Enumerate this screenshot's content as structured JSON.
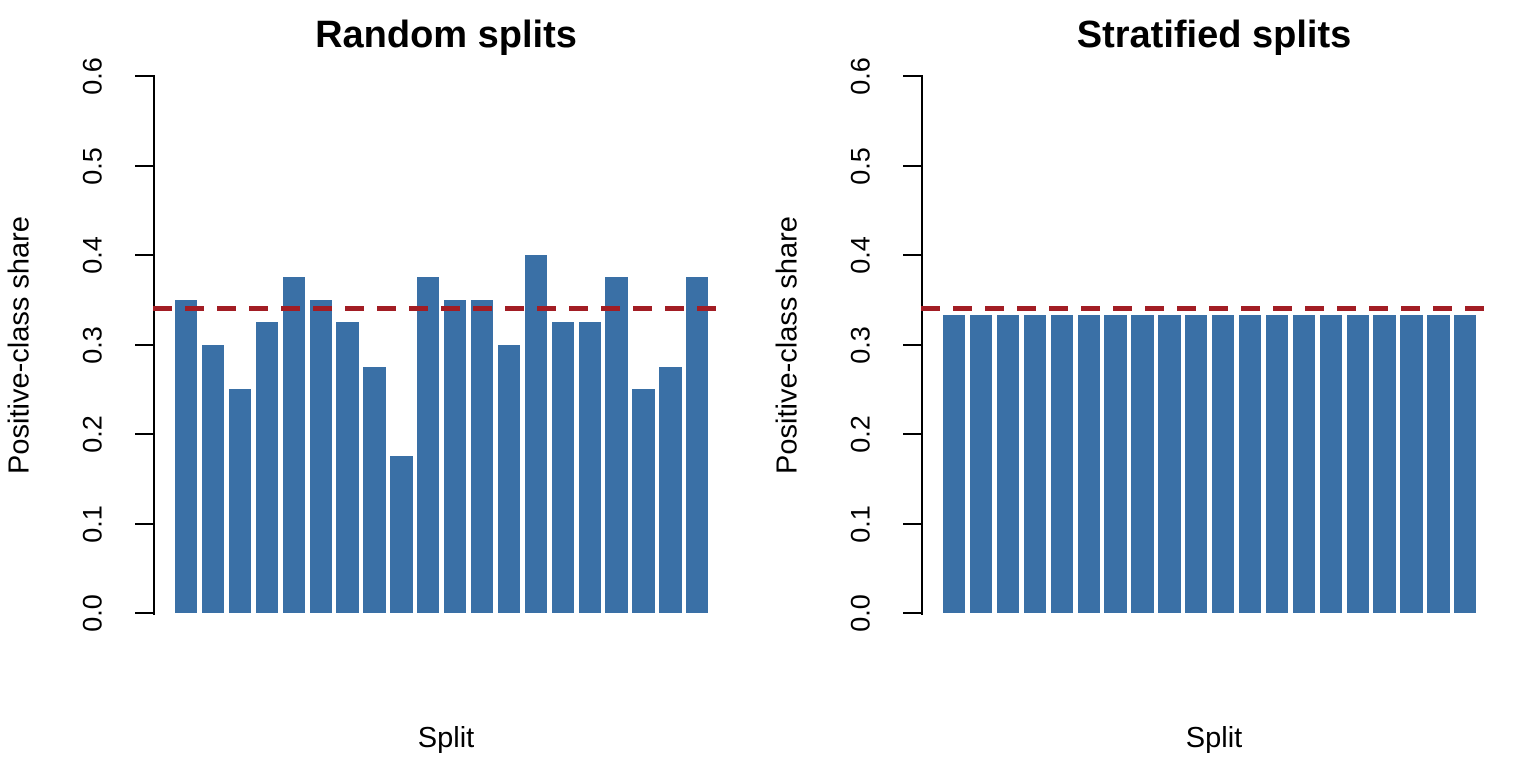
{
  "figure": {
    "background": "#FFFFFF",
    "bar_color": "#3A70A6",
    "reference_line_color": "#A21D24",
    "axis_color": "#000000",
    "text_color": "#000000"
  },
  "chart_data": [
    {
      "type": "bar",
      "title": "Random splits",
      "xlabel": "Split",
      "ylabel": "Positive-class share",
      "ylim": [
        0,
        0.6
      ],
      "yticks": [
        0,
        0.1,
        0.2,
        0.3,
        0.4,
        0.5,
        0.6
      ],
      "ytick_labels": [
        "0.0",
        "0.1",
        "0.2",
        "0.3",
        "0.4",
        "0.5",
        "0.6"
      ],
      "n_bars": 20,
      "values": [
        0.35,
        0.3,
        0.25,
        0.325,
        0.375,
        0.35,
        0.325,
        0.275,
        0.175,
        0.375,
        0.35,
        0.35,
        0.3,
        0.4,
        0.325,
        0.325,
        0.375,
        0.25,
        0.275,
        0.375
      ],
      "bar_color": "#3A70A6",
      "reference_line": {
        "y": 0.34,
        "style": "dashed",
        "color": "#A21D24"
      },
      "grid": false,
      "legend": null
    },
    {
      "type": "bar",
      "title": "Stratified splits",
      "xlabel": "Split",
      "ylabel": "Positive-class share",
      "ylim": [
        0,
        0.6
      ],
      "yticks": [
        0,
        0.1,
        0.2,
        0.3,
        0.4,
        0.5,
        0.6
      ],
      "ytick_labels": [
        "0.0",
        "0.1",
        "0.2",
        "0.3",
        "0.4",
        "0.5",
        "0.6"
      ],
      "n_bars": 20,
      "values": [
        0.333,
        0.333,
        0.333,
        0.333,
        0.333,
        0.333,
        0.333,
        0.333,
        0.333,
        0.333,
        0.333,
        0.333,
        0.333,
        0.333,
        0.333,
        0.333,
        0.333,
        0.333,
        0.333,
        0.333
      ],
      "bar_color": "#3A70A6",
      "reference_line": {
        "y": 0.34,
        "style": "dashed",
        "color": "#A21D24"
      },
      "grid": false,
      "legend": null
    }
  ]
}
